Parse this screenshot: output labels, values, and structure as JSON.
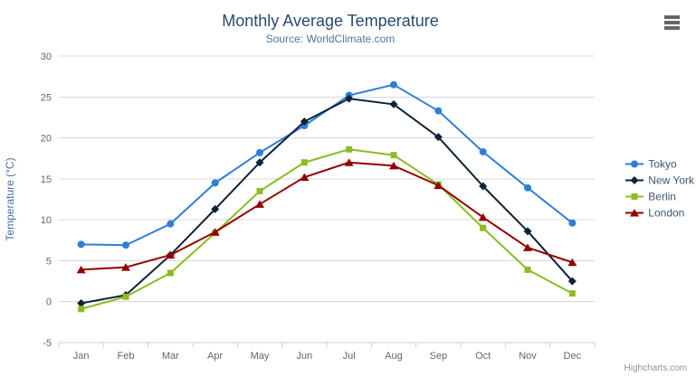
{
  "chart_data": {
    "type": "line",
    "title": "Monthly Average Temperature",
    "subtitle": "Source: WorldClimate.com",
    "categories": [
      "Jan",
      "Feb",
      "Mar",
      "Apr",
      "May",
      "Jun",
      "Jul",
      "Aug",
      "Sep",
      "Oct",
      "Nov",
      "Dec"
    ],
    "xlabel": "",
    "ylabel": "Temperature (°C)",
    "ylim": [
      -5,
      30
    ],
    "ytick_step": 5,
    "grid": true,
    "legend_position": "right",
    "series": [
      {
        "name": "Tokyo",
        "color": "#2f7ed8",
        "marker": "circle",
        "values": [
          7.0,
          6.9,
          9.5,
          14.5,
          18.2,
          21.5,
          25.2,
          26.5,
          23.3,
          18.3,
          13.9,
          9.6
        ]
      },
      {
        "name": "New York",
        "color": "#0d233a",
        "marker": "diamond",
        "values": [
          -0.2,
          0.8,
          5.7,
          11.3,
          17.0,
          22.0,
          24.8,
          24.1,
          20.1,
          14.1,
          8.6,
          2.5
        ]
      },
      {
        "name": "Berlin",
        "color": "#8bbc21",
        "marker": "square",
        "values": [
          -0.9,
          0.6,
          3.5,
          8.4,
          13.5,
          17.0,
          18.6,
          17.9,
          14.3,
          9.0,
          3.9,
          1.0
        ]
      },
      {
        "name": "London",
        "color": "#910000",
        "marker": "triangle",
        "values": [
          3.9,
          4.2,
          5.7,
          8.5,
          11.9,
          15.2,
          17.0,
          16.6,
          14.2,
          10.3,
          6.6,
          4.8
        ]
      }
    ]
  },
  "credit": {
    "label": "Highcharts.com"
  },
  "menu": {
    "icon": "hamburger-menu-icon"
  },
  "colors": {
    "title": "#274b6d",
    "subtitle": "#4d759e",
    "axis_labels": "#666666",
    "axis_title": "#4673a0",
    "gridline": "#d8d8d8",
    "axis_line": "#c0d0e0",
    "legend_text": "#3e576f",
    "menu_icon": "#666666",
    "credit_text": "#909090",
    "background": "#ffffff"
  }
}
